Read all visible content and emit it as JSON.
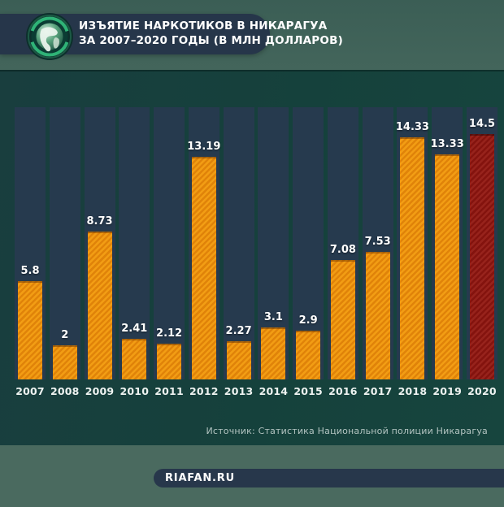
{
  "header": {
    "title_line1": "ИЗЪЯТИЕ НАРКОТИКОВ В НИКАРАГУА",
    "title_line2": "ЗА 2007–2020 ГОДЫ (В МЛН ДОЛЛАРОВ)",
    "logo_icon": "globe-icon"
  },
  "chart_data": {
    "type": "bar",
    "title": "Изъятие наркотиков в Никарагуа за 2007–2020 годы (в млн долларов)",
    "categories": [
      "2007",
      "2008",
      "2009",
      "2010",
      "2011",
      "2012",
      "2013",
      "2014",
      "2015",
      "2016",
      "2017",
      "2018",
      "2019",
      "2020"
    ],
    "values": [
      5.8,
      2,
      8.73,
      2.41,
      2.12,
      13.19,
      2.27,
      3.1,
      2.9,
      7.08,
      7.53,
      14.33,
      13.33,
      14.5
    ],
    "value_labels": [
      "5.8",
      "2",
      "8.73",
      "2.41",
      "2.12",
      "13.19",
      "2.27",
      "3.1",
      "2.9",
      "7.08",
      "7.53",
      "14.33",
      "13.33",
      "14.5"
    ],
    "xlabel": "",
    "ylabel": "",
    "ylim": [
      0,
      16.1
    ],
    "grid": false,
    "legend": false,
    "data_labels": "above bars",
    "highlight_index": 13,
    "bar_color": "#e78c0e",
    "highlight_color": "#8c1712",
    "track_color": "#263a4e"
  },
  "source": {
    "label": "Источник: Статистика Национальной полиции Никарагуа"
  },
  "footer": {
    "site": "RIAFAN.RU"
  },
  "colors": {
    "background": "#4a6b60",
    "panel": "#15413c",
    "pill_navy": "#26364a",
    "text_light": "#ffffff",
    "source_text": "#b3c4c1",
    "logo_ring_green": "#2fb377"
  }
}
